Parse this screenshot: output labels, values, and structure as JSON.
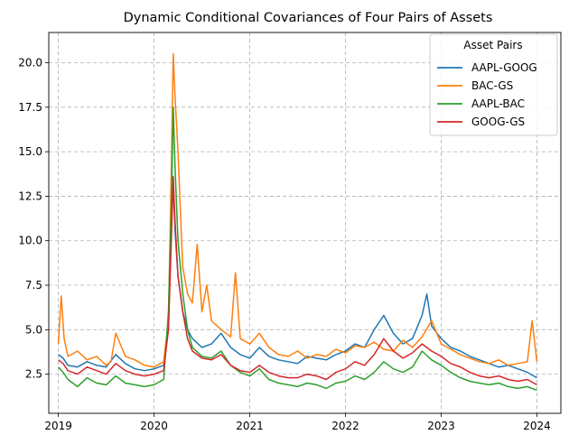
{
  "chart_data": {
    "type": "line",
    "title": "Dynamic Conditional Covariances of Four Pairs of Assets",
    "xlabel": "",
    "ylabel": "",
    "xlim": [
      2018.9,
      2024.25
    ],
    "ylim": [
      0.3,
      21.7
    ],
    "grid": true,
    "legend": {
      "title": "Asset Pairs",
      "placement": "top-right"
    },
    "x_ticks": [
      {
        "value": 2019,
        "label": "2019"
      },
      {
        "value": 2020,
        "label": "2020"
      },
      {
        "value": 2021,
        "label": "2021"
      },
      {
        "value": 2022,
        "label": "2022"
      },
      {
        "value": 2023,
        "label": "2023"
      },
      {
        "value": 2024,
        "label": "2024"
      }
    ],
    "y_ticks": [
      {
        "value": 2.5,
        "label": "2.5"
      },
      {
        "value": 5.0,
        "label": "5.0"
      },
      {
        "value": 7.5,
        "label": "7.5"
      },
      {
        "value": 10.0,
        "label": "10.0"
      },
      {
        "value": 12.5,
        "label": "12.5"
      },
      {
        "value": 15.0,
        "label": "15.0"
      },
      {
        "value": 17.5,
        "label": "17.5"
      },
      {
        "value": 20.0,
        "label": "20.0"
      }
    ],
    "series": [
      {
        "name": "AAPL-GOOG",
        "color": "#1f77b4",
        "x": [
          2019.0,
          2019.05,
          2019.1,
          2019.2,
          2019.3,
          2019.4,
          2019.5,
          2019.6,
          2019.7,
          2019.8,
          2019.9,
          2020.0,
          2020.1,
          2020.15,
          2020.18,
          2020.2,
          2020.22,
          2020.25,
          2020.3,
          2020.35,
          2020.4,
          2020.5,
          2020.6,
          2020.7,
          2020.8,
          2020.9,
          2021.0,
          2021.1,
          2021.2,
          2021.3,
          2021.4,
          2021.5,
          2021.6,
          2021.7,
          2021.8,
          2021.9,
          2022.0,
          2022.1,
          2022.2,
          2022.3,
          2022.4,
          2022.5,
          2022.6,
          2022.7,
          2022.8,
          2022.85,
          2022.9,
          2023.0,
          2023.1,
          2023.2,
          2023.3,
          2023.4,
          2023.5,
          2023.6,
          2023.7,
          2023.8,
          2023.9,
          2024.0
        ],
        "y": [
          3.6,
          3.4,
          3.0,
          2.9,
          3.2,
          3.0,
          2.9,
          3.6,
          3.1,
          2.8,
          2.7,
          2.8,
          3.0,
          5.0,
          11.0,
          13.0,
          10.5,
          8.0,
          6.0,
          5.0,
          4.5,
          4.0,
          4.2,
          4.8,
          4.0,
          3.6,
          3.4,
          4.0,
          3.5,
          3.3,
          3.2,
          3.1,
          3.5,
          3.4,
          3.3,
          3.6,
          3.8,
          4.2,
          4.0,
          5.0,
          5.8,
          4.8,
          4.2,
          4.5,
          5.8,
          7.0,
          5.2,
          4.5,
          4.0,
          3.8,
          3.5,
          3.3,
          3.1,
          2.9,
          3.0,
          2.8,
          2.6,
          2.3
        ]
      },
      {
        "name": "BAC-GS",
        "color": "#ff7f0e",
        "x": [
          2019.0,
          2019.03,
          2019.06,
          2019.1,
          2019.2,
          2019.3,
          2019.4,
          2019.5,
          2019.55,
          2019.6,
          2019.7,
          2019.8,
          2019.9,
          2020.0,
          2020.1,
          2020.15,
          2020.18,
          2020.2,
          2020.22,
          2020.25,
          2020.28,
          2020.3,
          2020.35,
          2020.4,
          2020.45,
          2020.5,
          2020.55,
          2020.6,
          2020.7,
          2020.8,
          2020.85,
          2020.9,
          2021.0,
          2021.1,
          2021.2,
          2021.3,
          2021.4,
          2021.5,
          2021.6,
          2021.7,
          2021.8,
          2021.9,
          2022.0,
          2022.1,
          2022.2,
          2022.3,
          2022.4,
          2022.5,
          2022.6,
          2022.7,
          2022.8,
          2022.9,
          2023.0,
          2023.1,
          2023.2,
          2023.3,
          2023.4,
          2023.5,
          2023.6,
          2023.7,
          2023.8,
          2023.9,
          2023.95,
          2024.0
        ],
        "y": [
          4.2,
          6.9,
          4.5,
          3.5,
          3.8,
          3.3,
          3.5,
          3.0,
          3.2,
          4.8,
          3.5,
          3.3,
          3.0,
          2.9,
          3.2,
          5.5,
          14.0,
          20.5,
          18.0,
          15.0,
          11.0,
          8.5,
          7.0,
          6.5,
          9.8,
          6.0,
          7.5,
          5.5,
          5.0,
          4.6,
          8.2,
          4.5,
          4.2,
          4.8,
          4.0,
          3.6,
          3.5,
          3.8,
          3.4,
          3.6,
          3.5,
          3.9,
          3.7,
          4.1,
          4.0,
          4.3,
          3.9,
          3.8,
          4.4,
          4.0,
          4.6,
          5.5,
          4.2,
          3.9,
          3.6,
          3.4,
          3.2,
          3.1,
          3.3,
          3.0,
          3.1,
          3.2,
          5.5,
          3.2
        ]
      },
      {
        "name": "AAPL-BAC",
        "color": "#2ca02c",
        "x": [
          2019.0,
          2019.05,
          2019.1,
          2019.2,
          2019.3,
          2019.4,
          2019.5,
          2019.6,
          2019.7,
          2019.8,
          2019.9,
          2020.0,
          2020.1,
          2020.15,
          2020.18,
          2020.2,
          2020.22,
          2020.25,
          2020.3,
          2020.35,
          2020.4,
          2020.5,
          2020.6,
          2020.7,
          2020.8,
          2020.9,
          2021.0,
          2021.1,
          2021.2,
          2021.3,
          2021.4,
          2021.5,
          2021.6,
          2021.7,
          2021.8,
          2021.9,
          2022.0,
          2022.1,
          2022.2,
          2022.3,
          2022.4,
          2022.5,
          2022.6,
          2022.7,
          2022.8,
          2022.9,
          2023.0,
          2023.1,
          2023.2,
          2023.3,
          2023.4,
          2023.5,
          2023.6,
          2023.7,
          2023.8,
          2023.9,
          2024.0
        ],
        "y": [
          2.9,
          2.6,
          2.2,
          1.8,
          2.3,
          2.0,
          1.9,
          2.4,
          2.0,
          1.9,
          1.8,
          1.9,
          2.2,
          6.0,
          12.0,
          17.5,
          14.0,
          10.0,
          7.0,
          5.0,
          4.0,
          3.5,
          3.4,
          3.8,
          3.0,
          2.6,
          2.4,
          2.8,
          2.2,
          2.0,
          1.9,
          1.8,
          2.0,
          1.9,
          1.7,
          2.0,
          2.1,
          2.4,
          2.2,
          2.6,
          3.2,
          2.8,
          2.6,
          2.9,
          3.8,
          3.3,
          3.0,
          2.6,
          2.3,
          2.1,
          2.0,
          1.9,
          2.0,
          1.8,
          1.7,
          1.8,
          1.6
        ]
      },
      {
        "name": "GOOG-GS",
        "color": "#d62728",
        "x": [
          2019.0,
          2019.05,
          2019.1,
          2019.2,
          2019.3,
          2019.4,
          2019.5,
          2019.6,
          2019.7,
          2019.8,
          2019.9,
          2020.0,
          2020.1,
          2020.15,
          2020.18,
          2020.2,
          2020.22,
          2020.25,
          2020.3,
          2020.35,
          2020.4,
          2020.5,
          2020.6,
          2020.7,
          2020.8,
          2020.9,
          2021.0,
          2021.1,
          2021.2,
          2021.3,
          2021.4,
          2021.5,
          2021.6,
          2021.7,
          2021.8,
          2021.9,
          2022.0,
          2022.1,
          2022.2,
          2022.3,
          2022.4,
          2022.5,
          2022.6,
          2022.7,
          2022.8,
          2022.9,
          2023.0,
          2023.1,
          2023.2,
          2023.3,
          2023.4,
          2023.5,
          2023.6,
          2023.7,
          2023.8,
          2023.9,
          2024.0
        ],
        "y": [
          3.3,
          3.1,
          2.7,
          2.5,
          2.9,
          2.7,
          2.5,
          3.1,
          2.7,
          2.5,
          2.4,
          2.5,
          2.7,
          5.0,
          10.0,
          13.6,
          11.0,
          8.0,
          6.0,
          4.5,
          3.8,
          3.4,
          3.3,
          3.6,
          3.0,
          2.7,
          2.6,
          3.0,
          2.6,
          2.4,
          2.3,
          2.3,
          2.5,
          2.4,
          2.2,
          2.6,
          2.8,
          3.2,
          3.0,
          3.6,
          4.5,
          3.8,
          3.4,
          3.7,
          4.2,
          3.8,
          3.5,
          3.1,
          2.9,
          2.6,
          2.4,
          2.3,
          2.4,
          2.2,
          2.1,
          2.2,
          1.9
        ]
      }
    ]
  }
}
